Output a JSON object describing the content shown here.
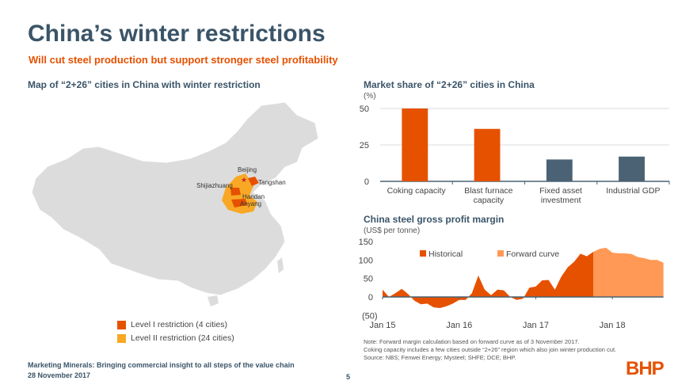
{
  "header": {
    "title": "China’s winter restrictions",
    "subtitle": "Will cut steel production but support stronger steel profitability"
  },
  "map": {
    "title": "Map of “2+26” cities in China with winter restriction",
    "cities": [
      "Beijing",
      "Tangshan",
      "Shijiazhuang",
      "Handan",
      "Anyang"
    ],
    "legend": [
      {
        "label": "Level I restriction (4 cities)",
        "color": "#e65100"
      },
      {
        "label": "Level II restriction (24 cities)",
        "color": "#f9a825"
      }
    ]
  },
  "chart_data": [
    {
      "type": "bar",
      "title": "Market share of “2+26” cities in China",
      "ylabel": "(%)",
      "ylim": [
        0,
        50
      ],
      "yticks": [
        0,
        25,
        50
      ],
      "categories": [
        "Coking capacity",
        "Blast furnace capacity",
        "Fixed asset investment",
        "Industrial GDP"
      ],
      "category_lines": [
        [
          "Coking capacity"
        ],
        [
          "Blast furnace",
          "capacity"
        ],
        [
          "Fixed asset",
          "investment"
        ],
        [
          "Industrial GDP"
        ]
      ],
      "values": [
        50,
        36,
        15,
        17
      ],
      "colors": [
        "#e65100",
        "#e65100",
        "#4a6274",
        "#4a6274"
      ],
      "grid": true
    },
    {
      "type": "area",
      "title": "China steel gross profit margin",
      "ylabel": "(US$ per tonne)",
      "ylim": [
        -50,
        150
      ],
      "yticks": [
        {
          "v": 150,
          "label": "150"
        },
        {
          "v": 100,
          "label": "100"
        },
        {
          "v": 50,
          "label": "50"
        },
        {
          "v": 0,
          "label": "0"
        },
        {
          "v": -50,
          "label": "(50)"
        }
      ],
      "xticks": [
        {
          "m": 0,
          "label": "Jan 15"
        },
        {
          "m": 12,
          "label": "Jan 16"
        },
        {
          "m": 24,
          "label": "Jan 17"
        },
        {
          "m": 36,
          "label": "Jan 18"
        }
      ],
      "x_unit": "months since Jan 2015",
      "legend_placement": "top",
      "series": [
        {
          "name": "Historical",
          "color": "#e65100",
          "start": 0,
          "values": [
            20,
            0,
            10,
            22,
            8,
            -10,
            -20,
            -18,
            -28,
            -30,
            -25,
            -18,
            -8,
            -8,
            10,
            58,
            20,
            5,
            20,
            18,
            0,
            -8,
            -5,
            25,
            28,
            45,
            46,
            20,
            55,
            80,
            95,
            117,
            110,
            122
          ]
        },
        {
          "name": "Forward curve",
          "color": "#ff9955",
          "start": 33,
          "values": [
            122,
            130,
            133,
            120,
            118,
            118,
            116,
            108,
            105,
            100,
            100,
            93
          ]
        }
      ]
    }
  ],
  "notes": [
    "Note:  Forward margin calculation based on forward curve as of 3 November 2017.",
    "Coking capacity includes a few cities outside “2+26” region which also join winter production cut.",
    "Source:   NBS; Fenwei Energy; Mysteel; SHFE; DCE; BHP."
  ],
  "footer": {
    "line1": "Marketing Minerals: Bringing commercial insight to all steps of the value chain",
    "line2": "28 November 2017",
    "page": "5",
    "logo": "BHP"
  }
}
